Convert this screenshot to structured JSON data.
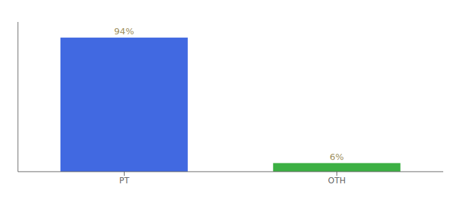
{
  "chart_data": {
    "type": "bar",
    "categories": [
      "PT",
      "OTH"
    ],
    "values": [
      94,
      6
    ],
    "value_labels": [
      "94%",
      "6%"
    ],
    "colors": [
      "#4169e1",
      "#3cb043"
    ],
    "ylim": [
      0,
      105
    ],
    "data_labels": true,
    "tick_labels": "x"
  }
}
